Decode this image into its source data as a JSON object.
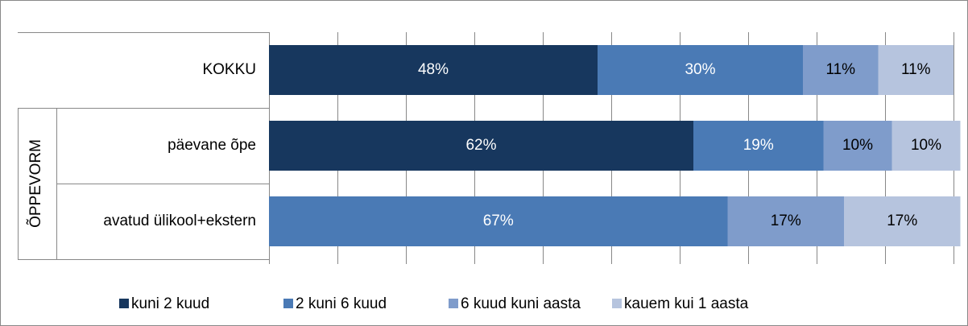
{
  "chart_data": {
    "type": "stacked-bar-horizontal",
    "categories": [
      "KOKKU",
      "päevane õpe",
      "avatud ülikool+ekstern"
    ],
    "group_label": "ÕPPEVORM",
    "series": [
      {
        "name": "kuni 2 kuud",
        "color": "#17375e",
        "values": [
          48,
          62,
          null
        ],
        "value_labels": [
          "48%",
          "62%",
          null
        ]
      },
      {
        "name": "2 kuni 6 kuud",
        "color": "#4a7ab5",
        "values": [
          30,
          19,
          67
        ],
        "value_labels": [
          "30%",
          "19%",
          "67%"
        ]
      },
      {
        "name": "6 kuud kuni aasta",
        "color": "#7f9ccb",
        "values": [
          11,
          10,
          17
        ],
        "value_labels": [
          "11%",
          "10%",
          "17%"
        ]
      },
      {
        "name": "kauem kui 1 aasta",
        "color": "#b6c4de",
        "values": [
          11,
          10,
          17
        ],
        "value_labels": [
          "11%",
          "10%",
          "17%"
        ]
      }
    ],
    "xlim": [
      0,
      100
    ],
    "xticks": [
      0,
      10,
      20,
      30,
      40,
      50,
      60,
      70,
      80,
      90,
      100
    ],
    "grid": true,
    "legend": "bottom"
  }
}
